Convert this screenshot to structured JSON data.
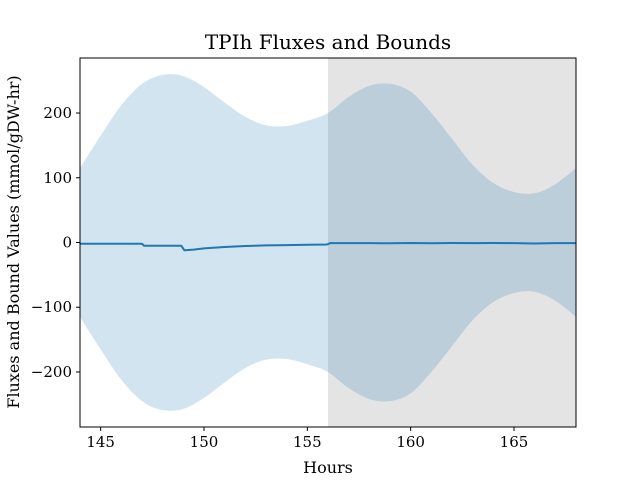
{
  "chart_data": {
    "type": "line",
    "title": "TPIh Fluxes and Bounds",
    "xlabel": "Hours",
    "ylabel": "Fluxes and Bound Values (mmol/gDW-hr)",
    "xlim": [
      144,
      168
    ],
    "ylim": [
      -285,
      285
    ],
    "xticks": [
      145,
      150,
      155,
      160,
      165
    ],
    "yticks": [
      -200,
      -100,
      0,
      100,
      200
    ],
    "xtick_labels": [
      "145",
      "150",
      "155",
      "160",
      "165"
    ],
    "ytick_labels": [
      "−200",
      "−100",
      "0",
      "100",
      "200"
    ],
    "grid": false,
    "legend": "none",
    "shaded_region": {
      "x_start": 156,
      "x_end": 168,
      "color": "#e4e4e4"
    },
    "bounds_band": {
      "color": "#cfe1ee",
      "upper_x": [
        144,
        145,
        146,
        147,
        148,
        149,
        150,
        151,
        152,
        153,
        154,
        155,
        156,
        157,
        158,
        159,
        160,
        161,
        162,
        163,
        164,
        165,
        166,
        167,
        168
      ],
      "upper_y": [
        115,
        165,
        212,
        245,
        259,
        257,
        240,
        216,
        194,
        181,
        180,
        188,
        200,
        225,
        242,
        245,
        233,
        200,
        160,
        120,
        92,
        78,
        76,
        90,
        115
      ]
    },
    "series": [
      {
        "color": "#1f77b4",
        "x": [
          144,
          146,
          147,
          147.1,
          148.9,
          149.05,
          149.5,
          150,
          151,
          152,
          153,
          154,
          155,
          155.95,
          156.1,
          157,
          158,
          159,
          160,
          161,
          162,
          163,
          164,
          165,
          166,
          167,
          168
        ],
        "y": [
          -2,
          -2,
          -2,
          -5,
          -5,
          -12,
          -11,
          -9,
          -7,
          -5.5,
          -4.5,
          -4,
          -3.5,
          -3,
          -1,
          -1,
          -1,
          -1.2,
          -0.8,
          -1.2,
          -0.8,
          -1,
          -0.8,
          -1,
          -1.5,
          -1,
          -1
        ]
      }
    ]
  }
}
